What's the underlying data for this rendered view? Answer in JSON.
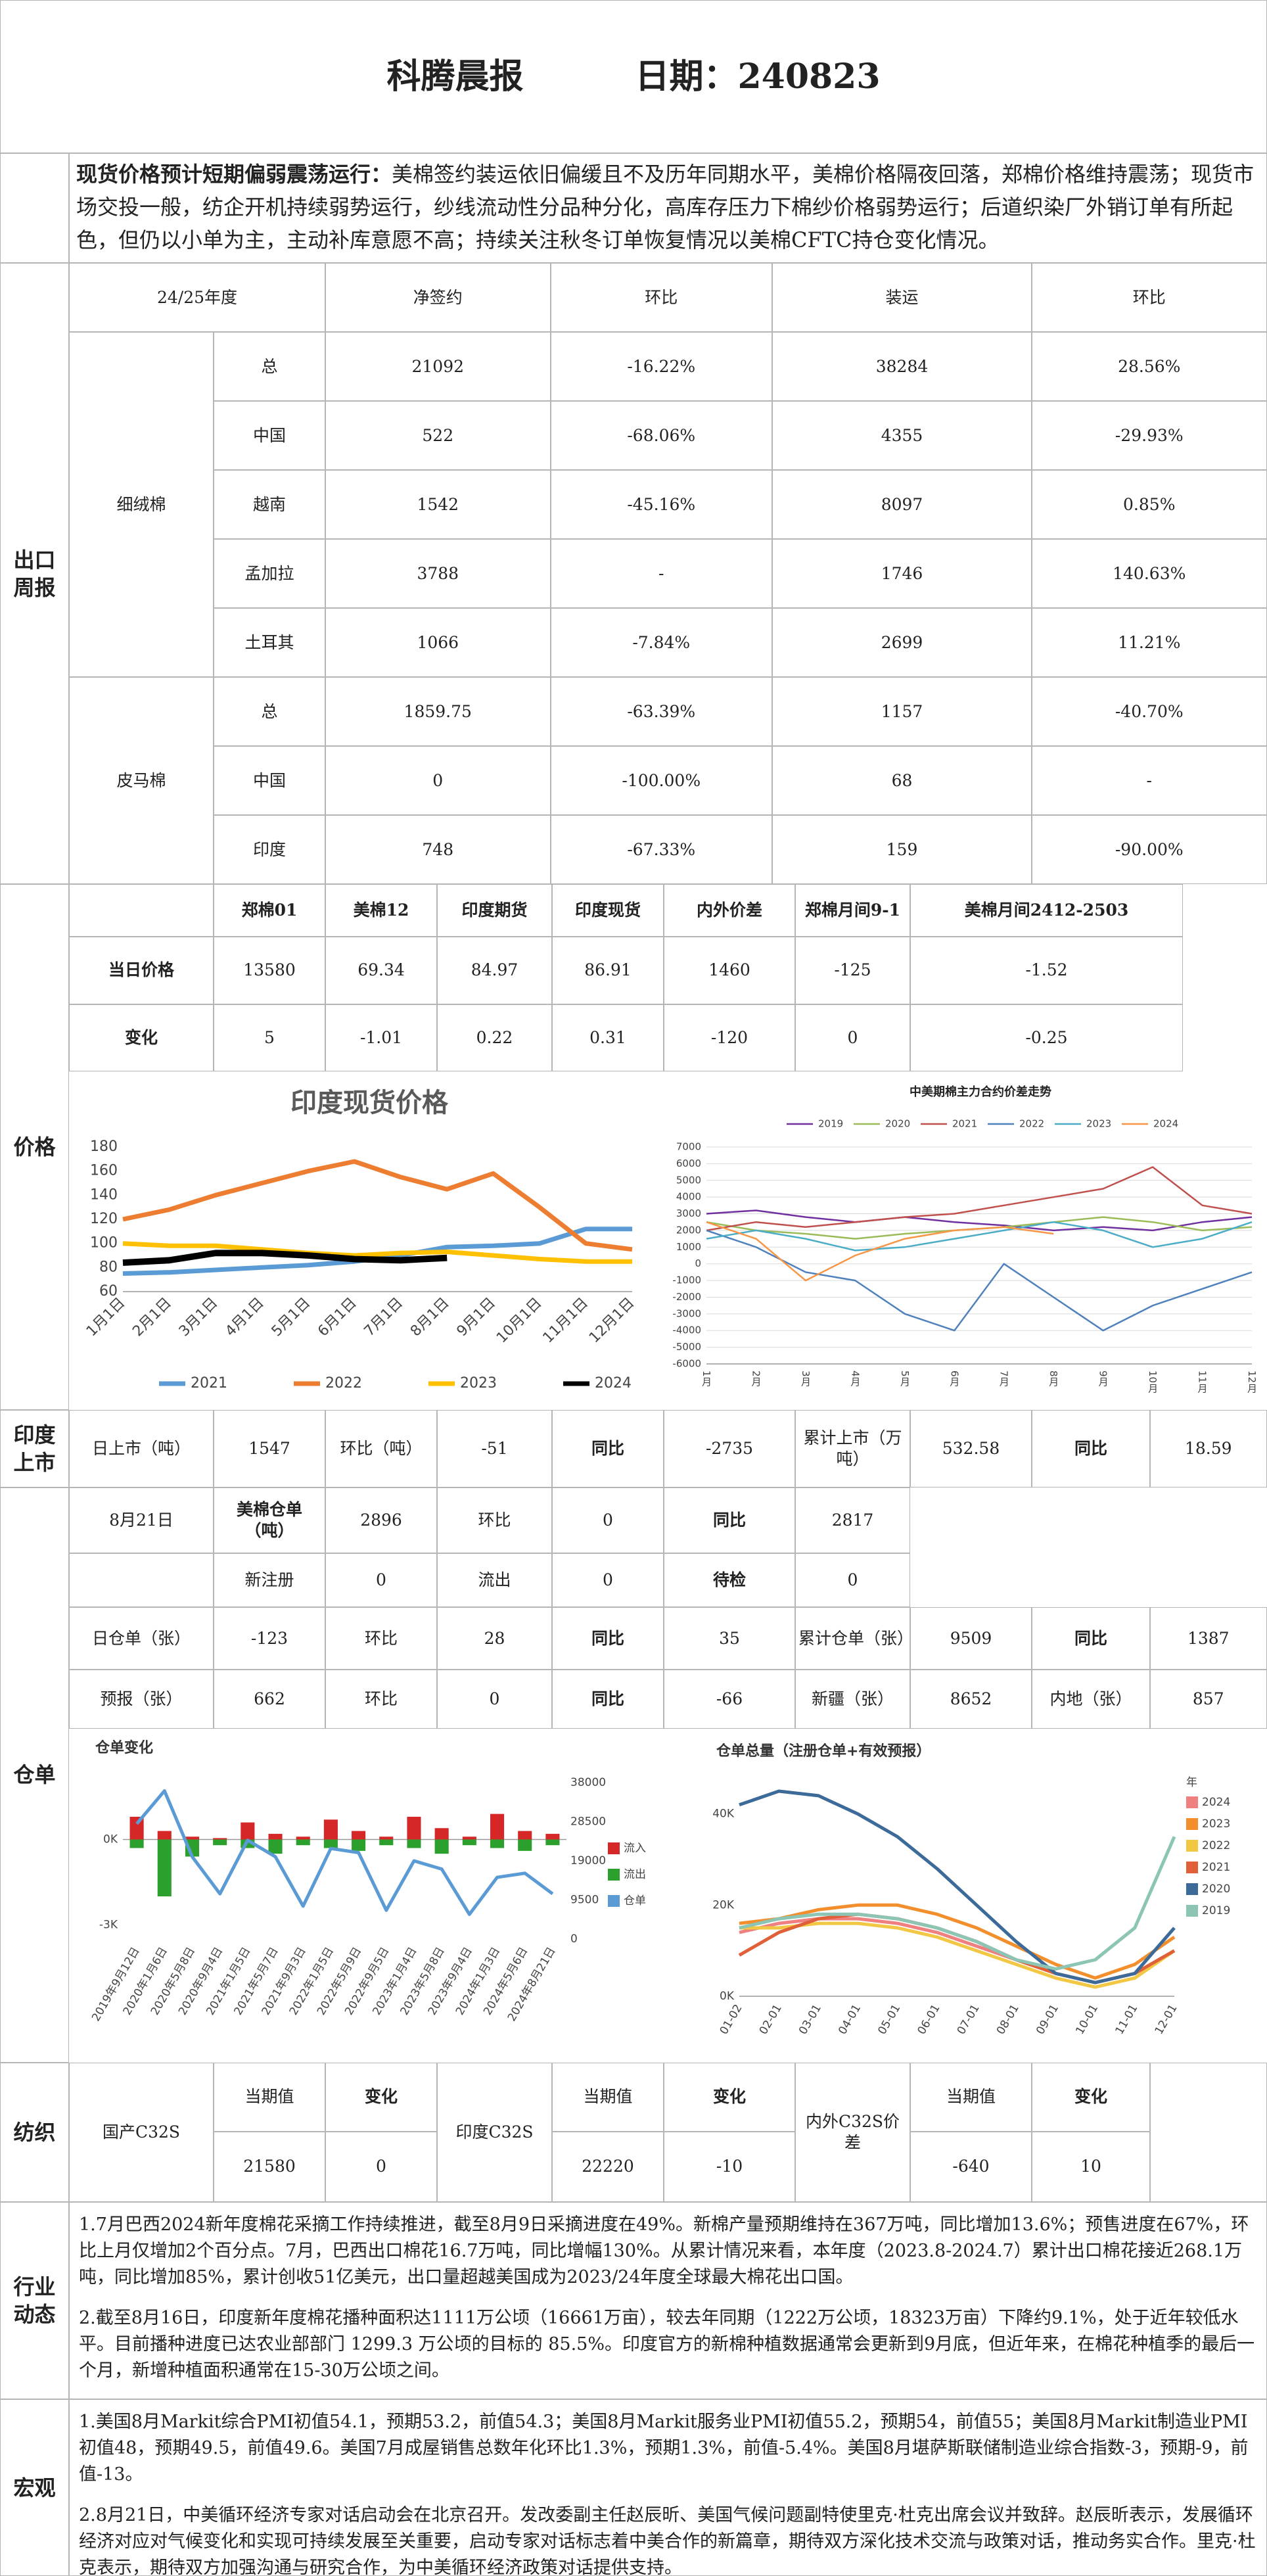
{
  "header": {
    "title": "科腾晨报",
    "date": "日期：240823"
  },
  "summary": {
    "lead": "现货价格预计短期偏弱震荡运行：",
    "text": "美棉签约装运依旧偏缓且不及历年同期水平，美棉价格隔夜回落，郑棉价格维持震荡；现货市场交投一般，纺企开机持续弱势运行，纱线流动性分品种分化，高库存压力下棉纱价格弱势运行；后道织染厂外销订单有所起色，但仍以小单为主，主动补库意愿不高；持续关注秋冬订单恢复情况以美棉CFTC持仓变化情况。"
  },
  "export": {
    "label": "出口周报",
    "header": [
      "24/25年度",
      "净签约",
      "环比",
      "装运",
      "环比"
    ],
    "groups": [
      {
        "name": "细绒棉",
        "rows": [
          [
            "总",
            "21092",
            "-16.22%",
            "38284",
            "28.56%"
          ],
          [
            "中国",
            "522",
            "-68.06%",
            "4355",
            "-29.93%"
          ],
          [
            "越南",
            "1542",
            "-45.16%",
            "8097",
            "0.85%"
          ],
          [
            "孟加拉",
            "3788",
            "-",
            "1746",
            "140.63%"
          ],
          [
            "土耳其",
            "1066",
            "-7.84%",
            "2699",
            "11.21%"
          ]
        ]
      },
      {
        "name": "皮马棉",
        "rows": [
          [
            "总",
            "1859.75",
            "-63.39%",
            "1157",
            "-40.70%"
          ],
          [
            "中国",
            "0",
            "-100.00%",
            "68",
            "-"
          ],
          [
            "印度",
            "748",
            "-67.33%",
            "159",
            "-90.00%"
          ]
        ]
      }
    ]
  },
  "price": {
    "label": "价格",
    "header": [
      "郑棉01",
      "美棉12",
      "印度期货",
      "印度现货",
      "内外价差",
      "郑棉月间9-1",
      "美棉月间2412-2503"
    ],
    "rows": [
      {
        "label": "当日价格",
        "values": [
          "13580",
          "69.34",
          "84.97",
          "86.91",
          "1460",
          "-125",
          "-1.52"
        ]
      },
      {
        "label": "变化",
        "values": [
          "5",
          "-1.01",
          "0.22",
          "0.31",
          "-120",
          "0",
          "-0.25"
        ]
      }
    ]
  },
  "india": {
    "label": "印度上市",
    "cells": [
      "日上市（吨）",
      "1547",
      "环比（吨）",
      "-51",
      "同比",
      "-2735",
      "累计上市（万吨）",
      "532.58",
      "同比",
      "18.59"
    ]
  },
  "warehouse": {
    "label": "仓单",
    "rows": [
      [
        "8月21日",
        "美棉仓单（吨）",
        "2896",
        "环比",
        "0",
        "同比",
        "2817"
      ],
      [
        "新注册",
        "0",
        "流出",
        "0",
        "待检",
        "0"
      ],
      [
        "日仓单（张）",
        "-123",
        "环比",
        "28",
        "同比",
        "35",
        "累计仓单（张）",
        "9509",
        "同比",
        "1387"
      ],
      [
        "预报（张）",
        "662",
        "环比",
        "0",
        "同比",
        "-66",
        "新疆（张）",
        "8652",
        "内地（张）",
        "857"
      ]
    ]
  },
  "textile": {
    "label": "纺织",
    "groups": [
      {
        "name": "国产C32S",
        "header": [
          "当期值",
          "变化"
        ],
        "values": [
          "21580",
          "0"
        ]
      },
      {
        "name": "印度C32S",
        "header": [
          "当期值",
          "变化"
        ],
        "values": [
          "22220",
          "-10"
        ]
      },
      {
        "name": "内外C32S价差",
        "header": [
          "当期值",
          "变化"
        ],
        "values": [
          "-640",
          "10"
        ]
      }
    ]
  },
  "industry": {
    "label": "行业动态",
    "paragraphs": [
      "1.7月巴西2024新年度棉花采摘工作持续推进，截至8月9日采摘进度在49%。新棉产量预期维持在367万吨，同比增加13.6%；预售进度在67%，环比上月仅增加2个百分点。7月，巴西出口棉花16.7万吨，同比增幅130%。从累计情况来看，本年度（2023.8-2024.7）累计出口棉花接近268.1万吨，同比增加85%，累计创收51亿美元，出口量超越美国成为2023/24年度全球最大棉花出口国。",
      "2.截至8月16日，印度新年度棉花播种面积达1111万公顷（16661万亩），较去年同期（1222万公顷，18323万亩）下降约9.1%，处于近年较低水平。目前播种进度已达农业部部门 1299.3 万公顷的目标的 85.5%。印度官方的新棉种植数据通常会更新到9月底，但近年来，在棉花种植季的最后一个月，新增种植面积通常在15-30万公顷之间。"
    ]
  },
  "macro": {
    "label": "宏观",
    "paragraphs": [
      "1.美国8月Markit综合PMI初值54.1，预期53.2，前值54.3；美国8月Markit服务业PMI初值55.2，预期54，前值55；美国8月Markit制造业PMI初值48，预期49.5，前值49.6。美国7月成屋销售总数年化环比1.3%，预期1.3%，前值-5.4%。美国8月堪萨斯联储制造业综合指数-3，预期-9，前值-13。",
      "2.8月21日，中美循环经济专家对话启动会在北京召开。发改委副主任赵辰昕、美国气候问题副特使里克·杜克出席会议并致辞。赵辰昕表示，发展循环经济对应对气候变化和实现可持续发展至关重要，启动专家对话标志着中美合作的新篇章，期待双方深化技术交流与政策对话，推动务实合作。里克·杜克表示，期待双方加强沟通与研究合作，为中美循环经济政策对话提供支持。"
    ]
  },
  "chart_data": [
    {
      "type": "line",
      "title": "印度现货价格",
      "categories": [
        "1月1日",
        "2月1日",
        "3月1日",
        "4月1日",
        "5月1日",
        "6月1日",
        "7月1日",
        "8月1日",
        "9月1日",
        "10月1日",
        "11月1日",
        "12月1日"
      ],
      "series": [
        {
          "name": "2021",
          "color": "#5b9bd5",
          "values": [
            75,
            76,
            78,
            80,
            82,
            85,
            90,
            97,
            98,
            100,
            112,
            112
          ]
        },
        {
          "name": "2022",
          "color": "#ed7d31",
          "values": [
            120,
            128,
            140,
            150,
            160,
            168,
            155,
            145,
            158,
            130,
            100,
            95
          ]
        },
        {
          "name": "2023",
          "color": "#ffc000",
          "values": [
            100,
            98,
            98,
            95,
            92,
            90,
            92,
            93,
            90,
            87,
            85,
            85
          ]
        },
        {
          "name": "2024",
          "color": "#000000",
          "values": [
            84,
            86,
            92,
            92,
            90,
            87,
            86,
            88,
            null,
            null,
            null,
            null
          ]
        }
      ],
      "ylim": [
        60,
        180
      ],
      "yticks": [
        60,
        80,
        100,
        120,
        140,
        160,
        180
      ],
      "grid": false,
      "legend": "bottom"
    },
    {
      "type": "line",
      "title": "中美期棉主力合约价差走势",
      "categories": [
        "1月",
        "2月",
        "3月",
        "4月",
        "5月",
        "6月",
        "7月",
        "8月",
        "9月",
        "10月",
        "11月",
        "12月"
      ],
      "series": [
        {
          "name": "2019",
          "color": "#7030a0",
          "values": [
            3000,
            3200,
            2800,
            2500,
            2800,
            2500,
            2300,
            2000,
            2200,
            2000,
            2500,
            2800
          ]
        },
        {
          "name": "2020",
          "color": "#9bbb59",
          "values": [
            2500,
            2000,
            1800,
            1500,
            1800,
            2000,
            2200,
            2500,
            2800,
            2500,
            2000,
            2200
          ]
        },
        {
          "name": "2021",
          "color": "#c0504d",
          "values": [
            2000,
            2500,
            2200,
            2500,
            2800,
            3000,
            3500,
            4000,
            4500,
            5800,
            3500,
            3000
          ]
        },
        {
          "name": "2022",
          "color": "#4f81bd",
          "values": [
            2000,
            1000,
            -500,
            -1000,
            -3000,
            -4000,
            0,
            -2000,
            -4000,
            -2500,
            -1500,
            -500
          ]
        },
        {
          "name": "2023",
          "color": "#4bacc6",
          "values": [
            1500,
            2000,
            1500,
            800,
            1000,
            1500,
            2000,
            2500,
            2000,
            1000,
            1500,
            2500
          ]
        },
        {
          "name": "2024",
          "color": "#f79646",
          "values": [
            2500,
            1500,
            -1000,
            500,
            1500,
            2000,
            2200,
            1800,
            null,
            null,
            null,
            null
          ]
        }
      ],
      "ylim": [
        -6000,
        7000
      ],
      "yticks": [
        -6000,
        -5000,
        -4000,
        -3000,
        -2000,
        -1000,
        0,
        1000,
        2000,
        3000,
        4000,
        5000,
        6000,
        7000
      ],
      "grid": true,
      "legend": "top"
    },
    {
      "type": "bar_line",
      "title": "仓单变化",
      "categories": [
        "2019年9月12日",
        "2020年1月6日",
        "2020年5月8日",
        "2020年9月4日",
        "2021年1月5日",
        "2021年5月7日",
        "2021年9月3日",
        "2022年1月5日",
        "2022年5月9日",
        "2022年9月5日",
        "2023年1月4日",
        "2023年5月8日",
        "2023年9月4日",
        "2024年1月3日",
        "2024年5月6日",
        "2024年8月21日"
      ],
      "series": [
        {
          "name": "流入",
          "color": "#d62728",
          "mark": "bar",
          "values": [
            800,
            300,
            100,
            50,
            600,
            200,
            100,
            700,
            300,
            100,
            800,
            400,
            100,
            900,
            300,
            200
          ]
        },
        {
          "name": "流出",
          "color": "#2ca02c",
          "mark": "bar",
          "values": [
            -300,
            -2000,
            -600,
            -200,
            -300,
            -500,
            -200,
            -300,
            -400,
            -200,
            -300,
            -500,
            -200,
            -300,
            -400,
            -200
          ]
        },
        {
          "name": "仓单",
          "color": "#5b9bd5",
          "mark": "line",
          "axis": "y2",
          "values": [
            28000,
            36000,
            20000,
            11000,
            24000,
            20000,
            8000,
            22000,
            21000,
            7000,
            19000,
            17000,
            6000,
            15000,
            16000,
            11000
          ]
        }
      ],
      "ylim": [
        -3500,
        2000
      ],
      "yticks": [
        {
          "value": 0,
          "label": "0K"
        },
        {
          "value": -3000,
          "label": "-3K"
        }
      ],
      "y2lim": [
        0,
        38000
      ],
      "y2ticks": [
        0,
        9500,
        19000,
        28500,
        38000
      ],
      "grid": false,
      "legend": "right"
    },
    {
      "type": "line",
      "title": "仓单总量（注册仓单+有效预报）",
      "categories": [
        "01-02",
        "02-01",
        "03-01",
        "04-01",
        "05-01",
        "06-01",
        "07-01",
        "08-01",
        "09-01",
        "10-01",
        "11-01",
        "12-01"
      ],
      "legend_title": "年",
      "series": [
        {
          "name": "2024",
          "color": "#f08080",
          "values": [
            14000,
            16000,
            17000,
            17000,
            16000,
            14000,
            11000,
            8000,
            null,
            null,
            null,
            null
          ]
        },
        {
          "name": "2023",
          "color": "#f28e2b",
          "values": [
            16000,
            17000,
            19000,
            20000,
            20000,
            18000,
            15000,
            11000,
            7000,
            4000,
            7000,
            13000
          ]
        },
        {
          "name": "2022",
          "color": "#f2c744",
          "values": [
            15000,
            15000,
            16000,
            16000,
            15000,
            13000,
            10000,
            7000,
            4000,
            2000,
            4000,
            10000
          ]
        },
        {
          "name": "2021",
          "color": "#e0603a",
          "values": [
            9000,
            14000,
            17000,
            18000,
            17000,
            15000,
            12000,
            8000,
            5000,
            3000,
            5000,
            10000
          ]
        },
        {
          "name": "2020",
          "color": "#3d6b99",
          "values": [
            42000,
            45000,
            44000,
            40000,
            35000,
            28000,
            20000,
            12000,
            5000,
            3000,
            5000,
            15000
          ]
        },
        {
          "name": "2019",
          "color": "#8cc5b4",
          "values": [
            15000,
            17000,
            18000,
            18000,
            17000,
            15000,
            12000,
            8000,
            6000,
            8000,
            15000,
            35000
          ]
        }
      ],
      "ylim": [
        0,
        45000
      ],
      "yticks": [
        {
          "value": 0,
          "label": "0K"
        },
        {
          "value": 20000,
          "label": "20K"
        },
        {
          "value": 40000,
          "label": "40K"
        }
      ],
      "grid": false,
      "legend": "right"
    }
  ]
}
